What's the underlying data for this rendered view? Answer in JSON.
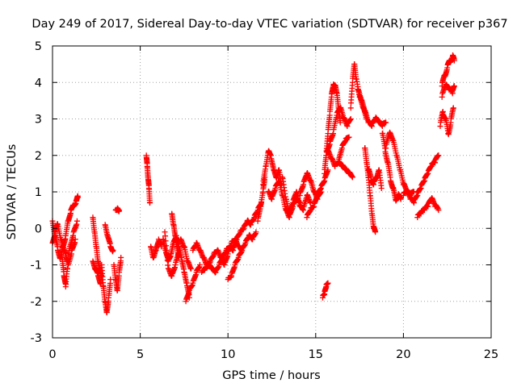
{
  "chart_data": {
    "type": "scatter",
    "title": "Day 249 of 2017, Sidereal Day-to-day VTEC variation (SDTVAR) for receiver p367",
    "xlabel": "GPS time / hours",
    "ylabel": "SDTVAR / TECUs",
    "xlim": [
      0,
      25
    ],
    "ylim": [
      -3,
      5
    ],
    "x_ticks": [
      "0",
      "5",
      "10",
      "15",
      "20",
      "25"
    ],
    "y_ticks": [
      "-3",
      "-2",
      "-1",
      "0",
      "1",
      "2",
      "3",
      "4",
      "5"
    ],
    "grid": true,
    "marker": "plus",
    "color": "#ff0000",
    "series": [
      {
        "name": "SDTVAR p367",
        "segments": [
          {
            "t": [
              0.0,
              0.15,
              0.3,
              0.45,
              0.6,
              0.75,
              0.9,
              1.05,
              1.2,
              1.35,
              1.45
            ],
            "v": [
              0.2,
              -0.2,
              -0.6,
              -0.8,
              -0.5,
              -0.2,
              0.2,
              0.5,
              0.6,
              0.75,
              0.85
            ]
          },
          {
            "t": [
              0.0,
              0.15,
              0.3,
              0.5,
              0.7,
              0.85,
              1.0,
              1.2,
              1.4
            ],
            "v": [
              -0.4,
              -0.1,
              0.1,
              -0.3,
              -0.6,
              -0.9,
              -0.5,
              -0.1,
              0.2
            ]
          },
          {
            "t": [
              0.55,
              0.65,
              0.75,
              0.85
            ],
            "v": [
              -0.8,
              -1.3,
              -1.6,
              -1.1
            ]
          },
          {
            "t": [
              0.9,
              1.1,
              1.3
            ],
            "v": [
              -1.0,
              -0.6,
              -0.3
            ]
          },
          {
            "t": [
              2.3,
              2.4,
              2.5,
              2.6,
              2.7,
              2.8
            ],
            "v": [
              0.3,
              -0.1,
              -0.5,
              -0.9,
              -1.1,
              -1.3
            ]
          },
          {
            "t": [
              2.3,
              2.45,
              2.6,
              2.75
            ],
            "v": [
              -0.9,
              -1.1,
              -1.3,
              -1.5
            ]
          },
          {
            "t": [
              2.8,
              2.9,
              3.0,
              3.1,
              3.2,
              3.3
            ],
            "v": [
              -1.0,
              -1.6,
              -2.0,
              -2.3,
              -1.9,
              -1.4
            ]
          },
          {
            "t": [
              3.0,
              3.15,
              3.3,
              3.45
            ],
            "v": [
              0.1,
              -0.2,
              -0.5,
              -0.6
            ]
          },
          {
            "t": [
              3.5,
              3.6,
              3.7,
              3.8,
              3.9
            ],
            "v": [
              -1.0,
              -1.4,
              -1.7,
              -1.2,
              -0.8
            ]
          },
          {
            "t": [
              3.6,
              3.7,
              3.8
            ],
            "v": [
              0.5,
              0.55,
              0.5
            ]
          },
          {
            "t": [
              5.35,
              5.4,
              5.45,
              5.5,
              5.55
            ],
            "v": [
              2.0,
              1.7,
              1.4,
              1.1,
              0.7
            ]
          },
          {
            "t": [
              5.6,
              5.75,
              5.9,
              6.05,
              6.2
            ],
            "v": [
              -0.5,
              -0.8,
              -0.6,
              -0.3,
              -0.5
            ]
          },
          {
            "t": [
              6.3,
              6.45,
              6.6,
              6.75,
              6.9,
              7.05,
              7.2,
              7.35,
              7.5,
              7.65,
              7.8
            ],
            "v": [
              -0.3,
              -0.6,
              -0.9,
              -0.7,
              -0.4,
              -0.2,
              -0.5,
              -0.8,
              -1.2,
              -1.5,
              -1.9
            ]
          },
          {
            "t": [
              6.4,
              6.6,
              6.8,
              7.0,
              7.2
            ],
            "v": [
              -0.1,
              -1.1,
              -1.3,
              -1.0,
              -0.6
            ]
          },
          {
            "t": [
              6.8,
              6.9,
              7.0,
              7.1,
              7.2
            ],
            "v": [
              0.4,
              0.1,
              -0.2,
              -0.5,
              -0.8
            ]
          },
          {
            "t": [
              7.3,
              7.5,
              7.7,
              7.9
            ],
            "v": [
              -0.3,
              -0.5,
              -0.9,
              -1.1
            ]
          },
          {
            "t": [
              7.6,
              7.8,
              8.0,
              8.2,
              8.4
            ],
            "v": [
              -2.0,
              -1.7,
              -1.5,
              -1.2,
              -1.0
            ]
          },
          {
            "t": [
              8.0,
              8.2,
              8.4,
              8.6,
              8.8,
              9.0,
              9.2,
              9.4,
              9.6,
              9.8,
              10.0,
              10.2,
              10.4,
              10.6,
              10.8,
              11.0,
              11.2,
              11.4,
              11.6
            ],
            "v": [
              -0.6,
              -0.4,
              -0.6,
              -0.8,
              -1.0,
              -0.9,
              -0.7,
              -0.6,
              -0.8,
              -1.0,
              -0.7,
              -0.4,
              -0.3,
              -0.5,
              -0.6,
              -0.4,
              -0.2,
              -0.3,
              -0.1
            ]
          },
          {
            "t": [
              8.5,
              8.7,
              8.9,
              9.1,
              9.3,
              9.5,
              9.7,
              9.9,
              10.1,
              10.3,
              10.5,
              10.7,
              10.9,
              11.1,
              11.3,
              11.5,
              11.7,
              11.9
            ],
            "v": [
              -1.2,
              -1.1,
              -1.0,
              -1.1,
              -1.2,
              -1.0,
              -0.8,
              -0.6,
              -0.5,
              -0.6,
              -0.3,
              -0.1,
              0.0,
              0.2,
              0.1,
              0.3,
              0.5,
              0.7
            ]
          },
          {
            "t": [
              10.0,
              10.2,
              10.4,
              10.6,
              10.8
            ],
            "v": [
              -1.4,
              -1.3,
              -1.0,
              -0.8,
              -0.6
            ]
          },
          {
            "t": [
              11.7,
              11.85,
              12.0,
              12.1
            ],
            "v": [
              0.2,
              0.6,
              1.0,
              1.4
            ]
          },
          {
            "t": [
              12.0,
              12.15,
              12.3,
              12.45,
              12.6,
              12.75,
              12.9,
              13.05
            ],
            "v": [
              1.2,
              1.7,
              2.1,
              2.0,
              1.6,
              1.4,
              1.6,
              1.2
            ]
          },
          {
            "t": [
              12.3,
              12.5,
              12.7,
              12.9,
              13.1,
              13.3,
              13.5,
              13.7,
              13.9,
              14.1
            ],
            "v": [
              1.0,
              0.8,
              1.1,
              1.3,
              0.9,
              0.5,
              0.3,
              0.6,
              0.8,
              0.7
            ]
          },
          {
            "t": [
              13.1,
              13.3,
              13.5,
              13.7,
              13.9,
              14.1,
              14.3,
              14.5,
              14.7
            ],
            "v": [
              1.4,
              0.8,
              0.4,
              0.7,
              1.0,
              0.6,
              0.5,
              0.9,
              0.7
            ]
          },
          {
            "t": [
              14.1,
              14.3,
              14.5,
              14.7,
              14.9,
              15.1,
              15.3
            ],
            "v": [
              0.9,
              1.2,
              1.5,
              1.3,
              1.0,
              0.8,
              1.0
            ]
          },
          {
            "t": [
              14.5,
              14.7,
              14.9,
              15.1,
              15.3,
              15.5,
              15.7
            ],
            "v": [
              0.3,
              0.5,
              0.6,
              0.9,
              1.1,
              1.3,
              1.6
            ]
          },
          {
            "t": [
              15.4,
              15.5,
              15.6,
              15.7
            ],
            "v": [
              -1.9,
              -1.8,
              -1.6,
              -1.5
            ]
          },
          {
            "t": [
              15.5,
              15.6,
              15.7,
              15.8,
              15.9,
              16.0,
              16.1,
              16.2,
              16.3,
              16.4
            ],
            "v": [
              1.5,
              2.0,
              2.6,
              3.1,
              3.6,
              3.9,
              3.9,
              3.7,
              3.3,
              2.9
            ]
          },
          {
            "t": [
              15.6,
              15.8,
              16.0,
              16.2,
              16.4,
              16.6,
              16.8,
              17.0
            ],
            "v": [
              2.0,
              2.3,
              2.6,
              3.1,
              3.3,
              3.0,
              2.8,
              3.0
            ]
          },
          {
            "t": [
              15.7,
              15.9,
              16.1,
              16.3,
              16.5,
              16.7,
              16.9
            ],
            "v": [
              2.1,
              1.9,
              1.7,
              1.8,
              2.2,
              2.4,
              2.5
            ]
          },
          {
            "t": [
              16.3,
              16.5,
              16.7,
              16.9,
              17.1
            ],
            "v": [
              1.8,
              1.7,
              1.6,
              1.5,
              1.4
            ]
          },
          {
            "t": [
              17.0,
              17.1,
              17.2,
              17.3,
              17.5,
              17.7,
              17.9
            ],
            "v": [
              3.3,
              4.0,
              4.5,
              4.1,
              3.6,
              3.3,
              3.0
            ]
          },
          {
            "t": [
              17.4,
              17.6,
              17.8,
              18.0,
              18.2,
              18.4,
              18.6,
              18.8,
              19.0
            ],
            "v": [
              3.8,
              3.5,
              3.2,
              2.9,
              2.8,
              3.0,
              2.9,
              2.8,
              2.9
            ]
          },
          {
            "t": [
              17.8,
              17.9,
              18.0,
              18.1,
              18.2,
              18.3,
              18.4
            ],
            "v": [
              2.2,
              1.8,
              1.4,
              0.9,
              0.4,
              0.0,
              -0.1
            ]
          },
          {
            "t": [
              18.0,
              18.15,
              18.3,
              18.45,
              18.6,
              18.75
            ],
            "v": [
              1.6,
              1.4,
              1.2,
              1.4,
              1.6,
              1.1
            ]
          },
          {
            "t": [
              18.8,
              18.95,
              19.1,
              19.25,
              19.4,
              19.55,
              19.7,
              19.85
            ],
            "v": [
              2.6,
              2.2,
              1.8,
              1.4,
              1.1,
              0.8,
              0.9,
              0.8
            ]
          },
          {
            "t": [
              19.0,
              19.2,
              19.4,
              19.6,
              19.8,
              20.0,
              20.2,
              20.4,
              20.6
            ],
            "v": [
              2.2,
              2.6,
              2.4,
              2.0,
              1.6,
              1.2,
              1.0,
              0.9,
              1.0
            ]
          },
          {
            "t": [
              20.0,
              20.2,
              20.4,
              20.6,
              20.8,
              21.0,
              21.2,
              21.4,
              21.6,
              21.8,
              22.0
            ],
            "v": [
              0.9,
              1.0,
              0.8,
              0.7,
              0.9,
              1.1,
              1.3,
              1.5,
              1.7,
              1.8,
              2.0
            ]
          },
          {
            "t": [
              20.8,
              21.0,
              21.2,
              21.4,
              21.6,
              21.8,
              22.0
            ],
            "v": [
              0.3,
              0.4,
              0.5,
              0.6,
              0.8,
              0.6,
              0.5
            ]
          },
          {
            "t": [
              22.1,
              22.25,
              22.4,
              22.55,
              22.7,
              22.85
            ],
            "v": [
              2.8,
              3.2,
              3.0,
              2.6,
              2.9,
              3.3
            ]
          },
          {
            "t": [
              22.2,
              22.35,
              22.5,
              22.65,
              22.8,
              22.9
            ],
            "v": [
              3.9,
              4.2,
              4.4,
              4.6,
              4.7,
              4.6
            ]
          },
          {
            "t": [
              22.2,
              22.4,
              22.6,
              22.8,
              22.9
            ],
            "v": [
              3.6,
              3.9,
              3.8,
              3.7,
              3.9
            ]
          }
        ]
      }
    ]
  }
}
